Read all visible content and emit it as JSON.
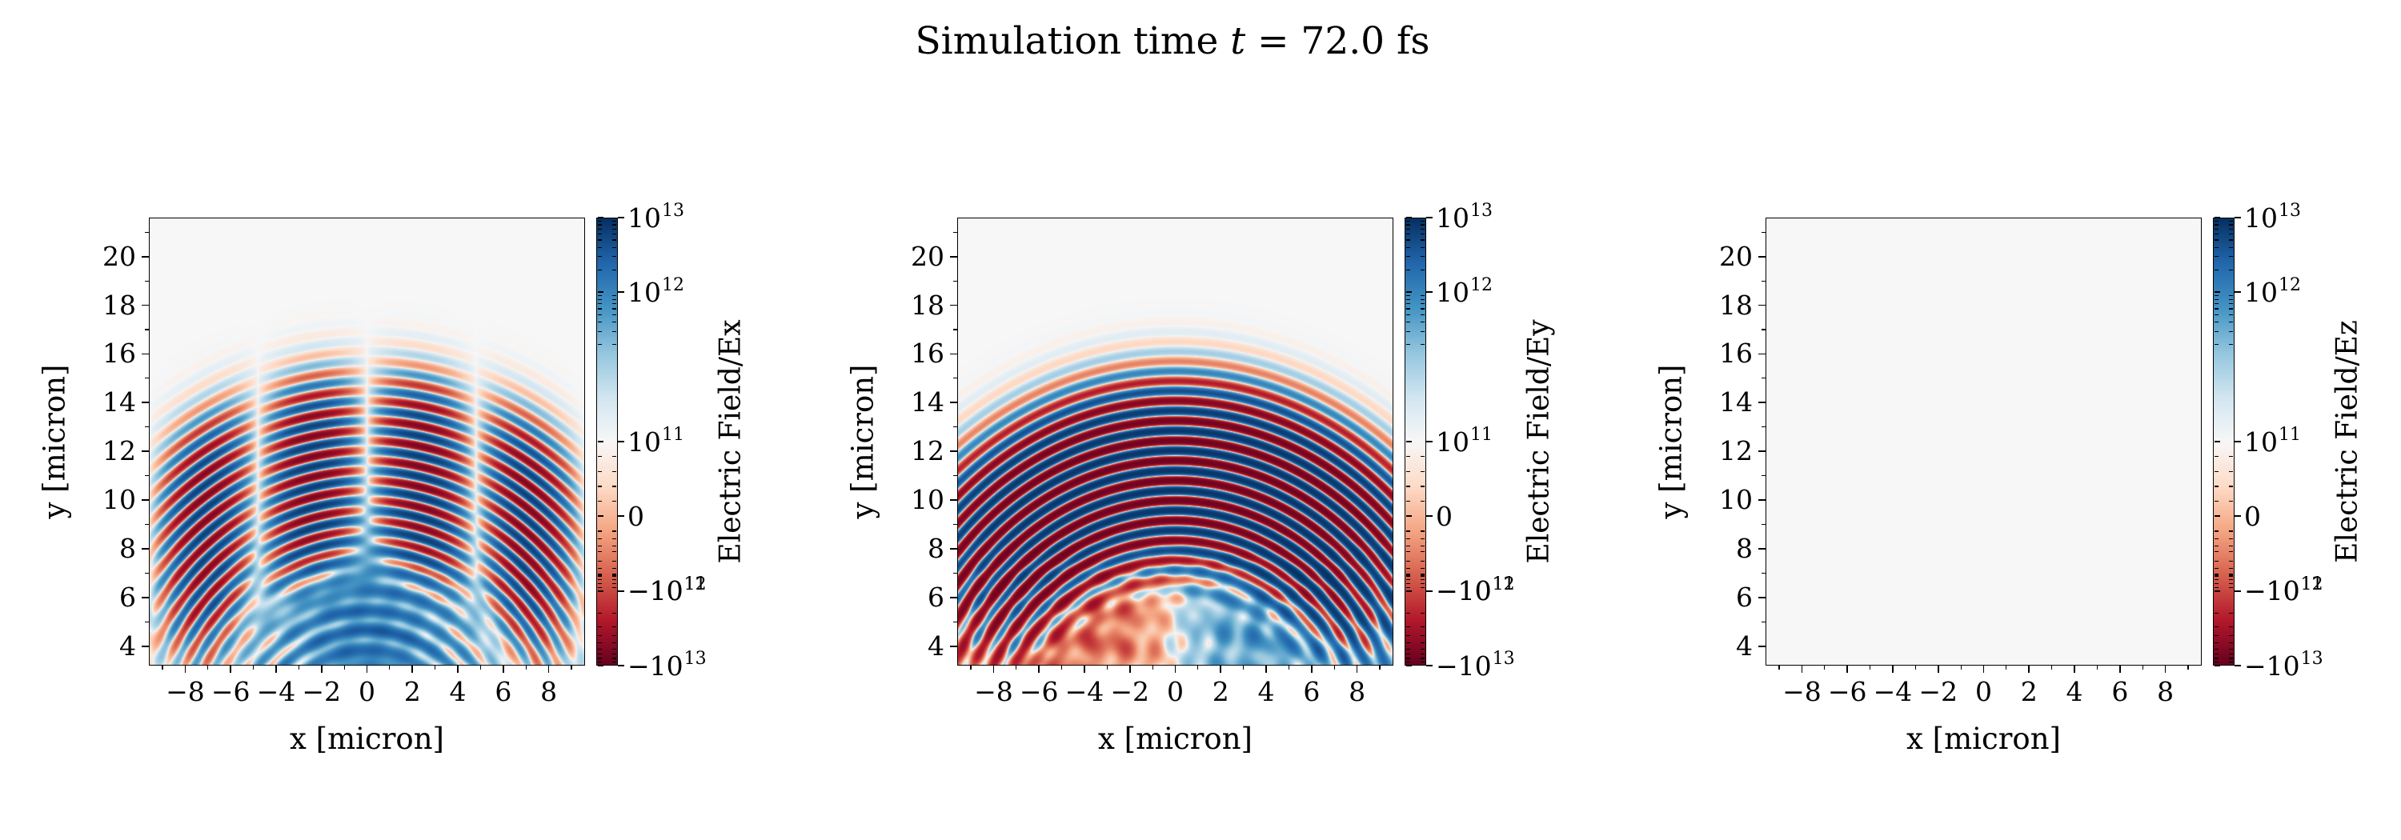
{
  "title": {
    "prefix": "Simulation time ",
    "variable": "t",
    "suffix": " = 72.0 fs"
  },
  "chart_data": {
    "type": "heatmap",
    "suptitle": "Simulation time t = 72.0 fs",
    "xlabel": "x [micron]",
    "ylabel": "y [micron]",
    "xticks": [
      -8,
      -6,
      -4,
      -2,
      0,
      2,
      4,
      6,
      8
    ],
    "yticks": [
      4,
      6,
      8,
      10,
      12,
      14,
      16,
      18,
      20
    ],
    "xlim": [
      -9.6,
      9.6
    ],
    "ylim": [
      3.2,
      21.6
    ],
    "colorbar": {
      "scale": "symlog",
      "linthresh": 100000000000.0,
      "tick_labels": [
        "10^13",
        "10^12",
        "10^11",
        "0",
        "-10^11",
        "-10^12",
        "-10^13"
      ],
      "tick_values": [
        10000000000000.0,
        1000000000000.0,
        100000000000.0,
        0,
        -100000000000.0,
        -1000000000000.0,
        -10000000000000.0
      ],
      "colormap": "RdBu",
      "colormap_stops": [
        "#67001f",
        "#b2182b",
        "#d6604d",
        "#f4a582",
        "#fddbc7",
        "#f7f7f7",
        "#d1e5f0",
        "#92c5de",
        "#4393c3",
        "#2166ac",
        "#053061"
      ]
    },
    "panels": [
      {
        "id": "Ex",
        "colorbar_label": "Electric Field/Ex",
        "description": "Laser pulse wavefront arcs, antisymmetric about x=0 with null line at x=0; weak blue plasma blob near bottom center",
        "field": {
          "kind": "pulse",
          "center_x": 0,
          "center_y": -1.5,
          "x_compress": 1.08,
          "wavelength": 0.82,
          "phase": 3.14159,
          "r_mid": 12.6,
          "r_halfwidth": 3.9,
          "cone_halfangle_deg": 58,
          "amplitude": 0.95,
          "parity": "odd",
          "parity_period": 9.6,
          "halo": "focus-blob"
        }
      },
      {
        "id": "Ey",
        "colorbar_label": "Electric Field/Ey",
        "description": "Strong concentric pulse bands saturating to dark blue in the core; patchy negative(left)/positive(right) sheath region below y=7",
        "field": {
          "kind": "pulse",
          "center_x": 0,
          "center_y": -1.5,
          "x_compress": 1.08,
          "wavelength": 0.82,
          "phase": 3.14159,
          "r_mid": 12.6,
          "r_halfwidth": 3.9,
          "cone_halfangle_deg": 58,
          "amplitude": 1.2,
          "parity": "even",
          "parity_period": 9.6,
          "halo": "sheath-dipole"
        }
      },
      {
        "id": "Ez",
        "colorbar_label": "Electric Field/Ez",
        "description": "Zero field everywhere (uniform background)",
        "field": {
          "kind": "zero"
        }
      }
    ]
  }
}
